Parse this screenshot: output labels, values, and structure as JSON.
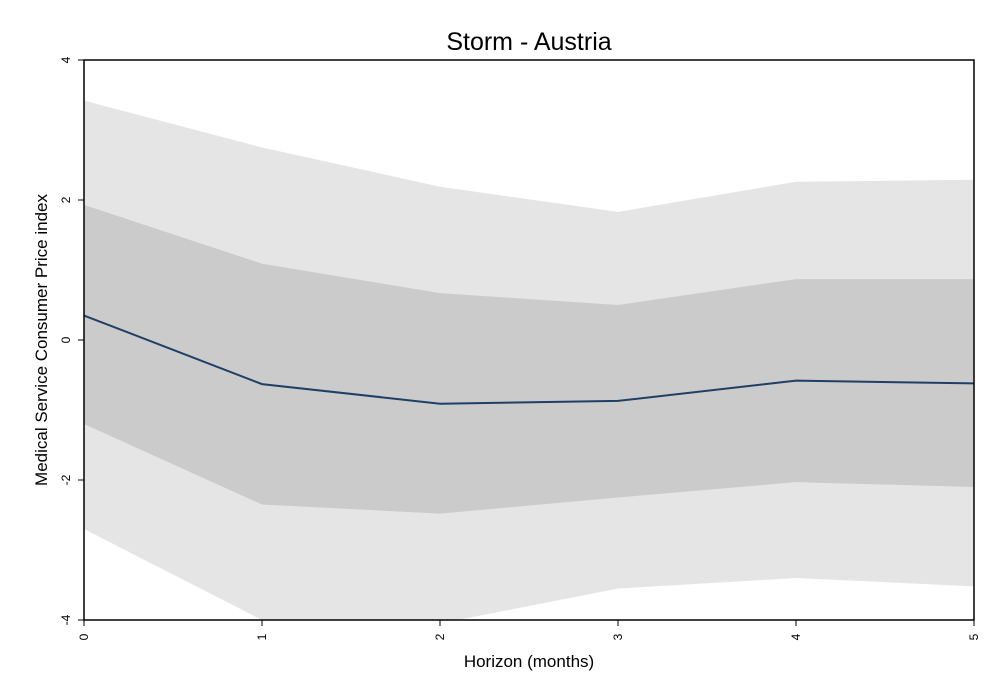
{
  "chart_data": {
    "type": "line",
    "title": "Storm - Austria",
    "xlabel": "Horizon (months)",
    "ylabel": "Medical Service Consumer Price index",
    "x": [
      0,
      1,
      2,
      3,
      4,
      5
    ],
    "xlim": [
      0,
      5
    ],
    "ylim": [
      -4,
      4
    ],
    "xticks": [
      "0",
      "1",
      "2",
      "3",
      "4",
      "5"
    ],
    "yticks": [
      "-4",
      "-2",
      "0",
      "2",
      "4"
    ],
    "grid": false,
    "series": [
      {
        "values": [
          0.35,
          -0.63,
          -0.91,
          -0.87,
          -0.58,
          -0.62
        ],
        "color": "#1f3f66"
      }
    ],
    "bands": [
      {
        "lower": [
          -2.7,
          -4.0,
          -4.05,
          -3.55,
          -3.4,
          -3.52
        ],
        "upper": [
          3.42,
          2.75,
          2.19,
          1.83,
          2.26,
          2.29
        ],
        "color": "#e5e5e5"
      },
      {
        "lower": [
          -1.2,
          -2.35,
          -2.48,
          -2.25,
          -2.03,
          -2.1
        ],
        "upper": [
          1.93,
          1.09,
          0.67,
          0.5,
          0.87,
          0.87
        ],
        "color": "#cbcbcb"
      }
    ]
  }
}
